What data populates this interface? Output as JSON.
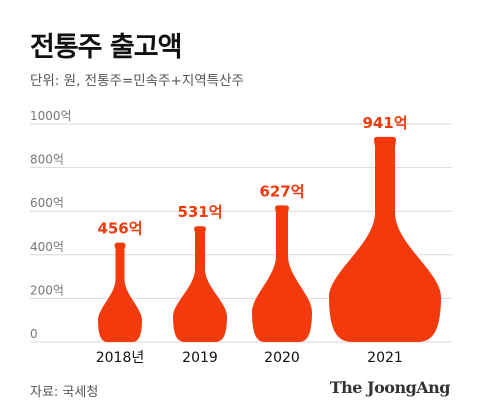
{
  "title": "전통주 출고액",
  "subtitle": "단위: 원, 전통주=민속주+지역특산주",
  "source": "자료: 국세청",
  "brand": "The JoongAng",
  "colors": {
    "accent": "#f23a0c",
    "grid": "#d8d8d8",
    "axis_text": "#777777",
    "text": "#111111"
  },
  "chart_data": {
    "type": "bar",
    "title": "전통주 출고액",
    "subtitle": "단위: 원, 전통주=민속주+지역특산주",
    "categories": [
      "2018년",
      "2019",
      "2020",
      "2021"
    ],
    "values": [
      456,
      531,
      627,
      941
    ],
    "value_labels": [
      "456억",
      "531억",
      "627억",
      "941억"
    ],
    "yticks": [
      "0",
      "200억",
      "400억",
      "600억",
      "800억",
      "1000억"
    ],
    "ylim": [
      0,
      1000
    ],
    "grid": true,
    "bar_shape": "bottle"
  }
}
